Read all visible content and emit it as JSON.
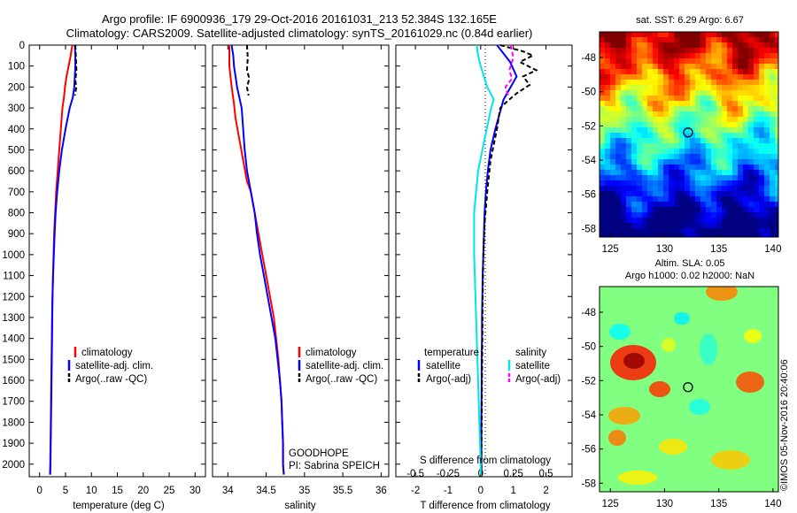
{
  "title": {
    "line1": "Argo profile: IF 6900936_179 29-Oct-2016 20161031_213 52.384S 132.165E",
    "line2": "Climatology: CARS2009. Satellite-adjusted climatology: synTS_20161029.nc (0.84d earlier)"
  },
  "credit": "©IMOS 05-Nov-2016 20:40:06",
  "colors": {
    "climatology": "#ff0000",
    "satellite": "#0000ff",
    "argo": "#000000",
    "sal_satellite": "#00e5e5",
    "sal_argo": "#ff00ff"
  },
  "chart_data": [
    {
      "id": "temperature",
      "type": "line",
      "xlabel": "temperature (deg C)",
      "ylabel": "",
      "xlim": [
        -2,
        32
      ],
      "ylim": [
        2060,
        0
      ],
      "xticks": [
        0,
        5,
        10,
        15,
        20,
        25,
        30
      ],
      "yticks": [
        0,
        100,
        200,
        300,
        400,
        500,
        600,
        700,
        800,
        900,
        1000,
        1100,
        1200,
        1300,
        1400,
        1500,
        1600,
        1700,
        1800,
        1900,
        2000
      ],
      "legend": [
        "climatology",
        "satellite-adj. clim.",
        "Argo(..raw -QC)"
      ],
      "series": [
        {
          "name": "climatology",
          "points": [
            [
              6.3,
              0
            ],
            [
              6.0,
              50
            ],
            [
              5.6,
              100
            ],
            [
              5.2,
              150
            ],
            [
              4.9,
              200
            ],
            [
              4.7,
              250
            ],
            [
              4.4,
              300
            ],
            [
              4.1,
              400
            ],
            [
              3.8,
              500
            ],
            [
              3.5,
              600
            ],
            [
              3.2,
              700
            ],
            [
              3.0,
              800
            ],
            [
              2.8,
              900
            ],
            [
              2.7,
              1000
            ],
            [
              2.6,
              1100
            ],
            [
              2.5,
              1200
            ],
            [
              2.4,
              1300
            ],
            [
              2.35,
              1400
            ],
            [
              2.3,
              1500
            ],
            [
              2.25,
              1600
            ],
            [
              2.2,
              1700
            ],
            [
              2.15,
              1800
            ],
            [
              2.1,
              1900
            ],
            [
              2.05,
              2000
            ],
            [
              2.0,
              2050
            ]
          ]
        },
        {
          "name": "satellite-adj. clim.",
          "points": [
            [
              6.8,
              0
            ],
            [
              6.9,
              50
            ],
            [
              6.9,
              100
            ],
            [
              6.8,
              150
            ],
            [
              6.7,
              200
            ],
            [
              6.4,
              250
            ],
            [
              5.8,
              300
            ],
            [
              5.0,
              400
            ],
            [
              4.3,
              500
            ],
            [
              3.8,
              600
            ],
            [
              3.4,
              700
            ],
            [
              3.1,
              800
            ],
            [
              2.9,
              900
            ],
            [
              2.75,
              1000
            ],
            [
              2.6,
              1100
            ],
            [
              2.5,
              1200
            ],
            [
              2.45,
              1300
            ],
            [
              2.4,
              1400
            ],
            [
              2.35,
              1500
            ],
            [
              2.3,
              1600
            ],
            [
              2.25,
              1700
            ],
            [
              2.2,
              1800
            ],
            [
              2.15,
              1900
            ],
            [
              2.1,
              2000
            ],
            [
              2.05,
              2050
            ]
          ]
        },
        {
          "name": "Argo(..raw -QC)",
          "points": [
            [
              6.9,
              0
            ],
            [
              7.0,
              60
            ],
            [
              7.1,
              120
            ],
            [
              6.9,
              170
            ],
            [
              7.1,
              200
            ],
            [
              6.8,
              240
            ]
          ]
        }
      ]
    },
    {
      "id": "salinity",
      "type": "line",
      "xlabel": "salinity",
      "ylabel": "",
      "xlim": [
        33.8,
        36.1
      ],
      "ylim": [
        2060,
        0
      ],
      "xticks": [
        34,
        34.5,
        35,
        35.5,
        36
      ],
      "legend": [
        "climatology",
        "satellite-adj. clim.",
        "Argo(..raw -QC)"
      ],
      "annotation": [
        "GOODHOPE",
        "PI: Sabrina SPEICH"
      ],
      "series": [
        {
          "name": "climatology",
          "points": [
            [
              34.02,
              0
            ],
            [
              34.02,
              100
            ],
            [
              34.05,
              200
            ],
            [
              34.08,
              280
            ],
            [
              34.1,
              350
            ],
            [
              34.15,
              450
            ],
            [
              34.2,
              550
            ],
            [
              34.25,
              650
            ],
            [
              34.3,
              700
            ],
            [
              34.35,
              800
            ],
            [
              34.4,
              900
            ],
            [
              34.45,
              1000
            ],
            [
              34.5,
              1100
            ],
            [
              34.55,
              1200
            ],
            [
              34.6,
              1300
            ],
            [
              34.63,
              1400
            ],
            [
              34.66,
              1500
            ],
            [
              34.68,
              1600
            ],
            [
              34.7,
              1700
            ],
            [
              34.71,
              1800
            ],
            [
              34.72,
              1900
            ],
            [
              34.72,
              2000
            ],
            [
              34.73,
              2050
            ]
          ]
        },
        {
          "name": "satellite-adj. clim.",
          "points": [
            [
              34.05,
              0
            ],
            [
              34.07,
              50
            ],
            [
              34.08,
              100
            ],
            [
              34.1,
              150
            ],
            [
              34.12,
              200
            ],
            [
              34.15,
              250
            ],
            [
              34.18,
              300
            ],
            [
              34.2,
              400
            ],
            [
              34.22,
              500
            ],
            [
              34.25,
              600
            ],
            [
              34.3,
              700
            ],
            [
              34.35,
              800
            ],
            [
              34.38,
              900
            ],
            [
              34.42,
              1000
            ],
            [
              34.47,
              1100
            ],
            [
              34.52,
              1200
            ],
            [
              34.57,
              1300
            ],
            [
              34.62,
              1400
            ],
            [
              34.65,
              1500
            ],
            [
              34.68,
              1600
            ],
            [
              34.7,
              1700
            ],
            [
              34.71,
              1800
            ],
            [
              34.72,
              1900
            ],
            [
              34.72,
              2000
            ],
            [
              34.73,
              2050
            ]
          ]
        },
        {
          "name": "Argo(..raw -QC)",
          "points": [
            [
              34.25,
              0
            ],
            [
              34.26,
              60
            ],
            [
              34.25,
              120
            ],
            [
              34.28,
              160
            ],
            [
              34.25,
              200
            ],
            [
              34.27,
              240
            ]
          ]
        }
      ]
    },
    {
      "id": "difference",
      "type": "line",
      "xlabel": "T difference from climatology",
      "xlabel_top": "S difference from climatology",
      "ylabel": "",
      "xlim": [
        -2.6,
        2.8
      ],
      "ylim": [
        2060,
        0
      ],
      "xticks": [
        -2,
        -1,
        0,
        1,
        2
      ],
      "xticks_sal": [
        -0.5,
        -0.25,
        0,
        0.25,
        0.5
      ],
      "legend_temp_title": "temperature",
      "legend_sal_title": "salinity",
      "legend": [
        "satellite",
        "Argo(-adj)",
        "satellite",
        "Argo(-adj)"
      ],
      "series": [
        {
          "name": "satellite",
          "quantity": "temperature",
          "points": [
            [
              0.5,
              0
            ],
            [
              0.9,
              80
            ],
            [
              1.1,
              150
            ],
            [
              0.7,
              260
            ],
            [
              0.45,
              400
            ],
            [
              0.3,
              500
            ],
            [
              0.22,
              600
            ],
            [
              0.16,
              700
            ],
            [
              0.12,
              800
            ],
            [
              0.1,
              900
            ],
            [
              0.08,
              1000
            ],
            [
              0.06,
              1100
            ],
            [
              0.05,
              1200
            ],
            [
              0.04,
              1300
            ],
            [
              0.04,
              1400
            ],
            [
              0.03,
              1500
            ],
            [
              0.03,
              1600
            ],
            [
              0.02,
              1800
            ],
            [
              0.02,
              2000
            ],
            [
              0.02,
              2050
            ]
          ]
        },
        {
          "name": "Argo(-adj)",
          "quantity": "temperature",
          "points": [
            [
              0.6,
              0
            ],
            [
              1.3,
              30
            ],
            [
              1.6,
              50
            ],
            [
              1.2,
              80
            ],
            [
              1.7,
              120
            ],
            [
              1.3,
              150
            ],
            [
              1.5,
              190
            ],
            [
              1.1,
              230
            ],
            [
              0.8,
              270
            ],
            [
              0.6,
              300
            ],
            [
              0.5,
              400
            ],
            [
              0.3,
              550
            ],
            [
              0.2,
              700
            ],
            [
              0.12,
              850
            ],
            [
              0.08,
              1000
            ],
            [
              0.06,
              1200
            ],
            [
              0.05,
              1400
            ],
            [
              0.04,
              1600
            ],
            [
              0.03,
              1800
            ],
            [
              0.02,
              2000
            ],
            [
              0.02,
              2050
            ]
          ]
        },
        {
          "name": "satellite",
          "quantity": "salinity",
          "points": [
            [
              -0.03,
              0
            ],
            [
              -0.02,
              50
            ],
            [
              0.0,
              100
            ],
            [
              0.05,
              200
            ],
            [
              0.1,
              260
            ],
            [
              0.08,
              300
            ],
            [
              0.03,
              450
            ],
            [
              -0.02,
              600
            ],
            [
              -0.05,
              800
            ],
            [
              -0.05,
              1000
            ],
            [
              -0.04,
              1200
            ],
            [
              -0.03,
              1400
            ],
            [
              -0.02,
              1600
            ],
            [
              -0.01,
              1800
            ],
            [
              0.0,
              2000
            ],
            [
              0.0,
              2050
            ]
          ]
        },
        {
          "name": "Argo(-adj)",
          "quantity": "salinity",
          "points": [
            [
              0.23,
              0
            ],
            [
              0.25,
              60
            ],
            [
              0.22,
              120
            ],
            [
              0.24,
              160
            ],
            [
              0.19,
              200
            ],
            [
              0.21,
              240
            ]
          ]
        }
      ]
    },
    {
      "id": "sst_map",
      "type": "heatmap",
      "title": "sat. SST: 6.29 Argo: 6.67",
      "xlim": [
        124,
        140.5
      ],
      "ylim": [
        -58.5,
        -46.5
      ],
      "xticks": [
        125,
        130,
        135,
        140
      ],
      "yticks": [
        -48,
        -50,
        -52,
        -54,
        -56,
        -58
      ],
      "marker": [
        132.165,
        -52.384
      ]
    },
    {
      "id": "sla_map",
      "type": "heatmap",
      "title": "Altim. SLA: 0.05",
      "subtitle": "Argo h1000: 0.02 h2000: NaN",
      "xlim": [
        124,
        140.5
      ],
      "ylim": [
        -58.5,
        -46.5
      ],
      "xticks": [
        125,
        130,
        135,
        140
      ],
      "yticks": [
        -48,
        -50,
        -52,
        -54,
        -56,
        -58
      ],
      "marker": [
        132.165,
        -52.384
      ]
    }
  ]
}
